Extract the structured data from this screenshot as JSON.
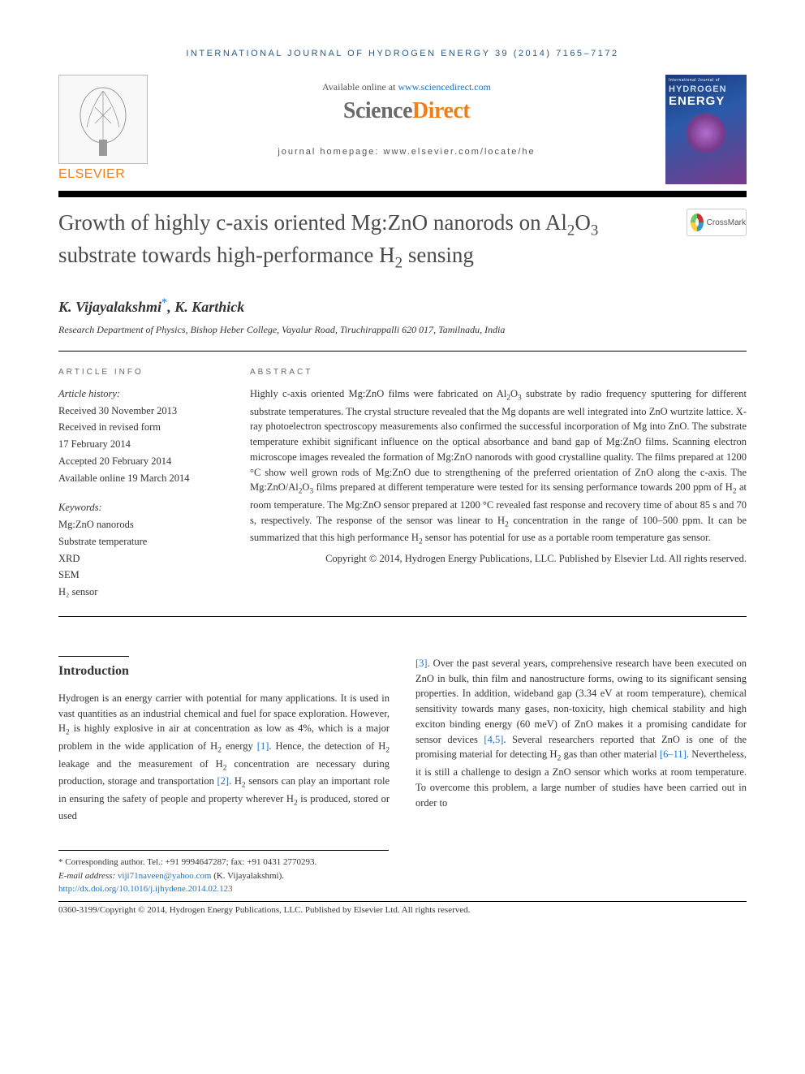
{
  "running_head": "INTERNATIONAL JOURNAL OF HYDROGEN ENERGY 39 (2014) 7165–7172",
  "header": {
    "elsevier": "ELSEVIER",
    "available_prefix": "Available online at ",
    "available_url": "www.sciencedirect.com",
    "sd_science": "Science",
    "sd_direct": "Direct",
    "journal_home": "journal homepage: www.elsevier.com/locate/he",
    "cover_top": "International Journal of",
    "cover_h": "HYDROGEN",
    "cover_e": "ENERGY"
  },
  "crossmark": "CrossMark",
  "title_html": "Growth of highly c-axis oriented Mg:ZnO nanorods on Al<sub>2</sub>O<sub>3</sub> substrate towards high-performance H<sub>2</sub> sensing",
  "authors_html": "K. Vijayalakshmi<span class=\"corr\">*</span>, K. Karthick",
  "affiliation": "Research Department of Physics, Bishop Heber College, Vayalur Road, Tiruchirappalli 620 017, Tamilnadu, India",
  "info": {
    "label": "ARTICLE INFO",
    "history_head": "Article history:",
    "history": [
      "Received 30 November 2013",
      "Received in revised form",
      "17 February 2014",
      "Accepted 20 February 2014",
      "Available online 19 March 2014"
    ],
    "kw_head": "Keywords:",
    "keywords": [
      "Mg:ZnO nanorods",
      "Substrate temperature",
      "XRD",
      "SEM",
      "H₂ sensor"
    ]
  },
  "abstract": {
    "label": "ABSTRACT",
    "text_html": "Highly c-axis oriented Mg:ZnO films were fabricated on Al<sub>2</sub>O<sub>3</sub> substrate by radio frequency sputtering for different substrate temperatures. The crystal structure revealed that the Mg dopants are well integrated into ZnO wurtzite lattice. X-ray photoelectron spectroscopy measurements also confirmed the successful incorporation of Mg into ZnO. The substrate temperature exhibit significant influence on the optical absorbance and band gap of Mg:ZnO films. Scanning electron microscope images revealed the formation of Mg:ZnO nanorods with good crystalline quality. The films prepared at 1200 °C show well grown rods of Mg:ZnO due to strengthening of the preferred orientation of ZnO along the c-axis. The Mg:ZnO/Al<sub>2</sub>O<sub>3</sub> films prepared at different temperature were tested for its sensing performance towards 200 ppm of H<sub>2</sub> at room temperature. The Mg:ZnO sensor prepared at 1200 °C revealed fast response and recovery time of about 85 s and 70 s, respectively. The response of the sensor was linear to H<sub>2</sub> concentration in the range of 100–500 ppm. It can be summarized that this high performance H<sub>2</sub> sensor has potential for use as a portable room temperature gas sensor.",
    "copyright": "Copyright © 2014, Hydrogen Energy Publications, LLC. Published by Elsevier Ltd. All rights reserved."
  },
  "intro": {
    "heading": "Introduction",
    "para1_html": "Hydrogen is an energy carrier with potential for many applications. It is used in vast quantities as an industrial chemical and fuel for space exploration. However, H<sub>2</sub> is highly explosive in air at concentration as low as 4%, which is a major problem in the wide application of H<sub>2</sub> energy <span class=\"ref\">[1]</span>. Hence, the detection of H<sub>2</sub> leakage and the measurement of H<sub>2</sub> concentration are necessary during production, storage and transportation <span class=\"ref\">[2]</span>. H<sub>2</sub> sensors can play an important role in ensuring the safety of people and property wherever H<sub>2</sub> is produced, stored or used",
    "para2_html": "<span class=\"ref\">[3]</span>. Over the past several years, comprehensive research have been executed on ZnO in bulk, thin film and nanostructure forms, owing to its significant sensing properties. In addition, wideband gap (3.34 eV at room temperature), chemical sensitivity towards many gases, non-toxicity, high chemical stability and high exciton binding energy (60 meV) of ZnO makes it a promising candidate for sensor devices <span class=\"ref\">[4,5]</span>. Several researchers reported that ZnO is one of the promising material for detecting H<sub>2</sub> gas than other material <span class=\"ref\">[6–11]</span>. Nevertheless, it is still a challenge to design a ZnO sensor which works at room temperature. To overcome this problem, a large number of studies have been carried out in order to"
  },
  "footnotes": {
    "corr": "* Corresponding author. Tel.: +91 9994647287; fax: +91 0431 2770293.",
    "email_label": "E-mail address: ",
    "email": "viji71naveen@yahoo.com",
    "email_paren": " (K. Vijayalakshmi).",
    "doi": "http://dx.doi.org/10.1016/j.ijhydene.2014.02.123",
    "issn_line": "0360-3199/Copyright © 2014, Hydrogen Energy Publications, LLC. Published by Elsevier Ltd. All rights reserved."
  },
  "colors": {
    "link": "#1a73cc",
    "orange": "#ee7f1a",
    "headblue": "#2a5a8a",
    "text": "#333333"
  }
}
